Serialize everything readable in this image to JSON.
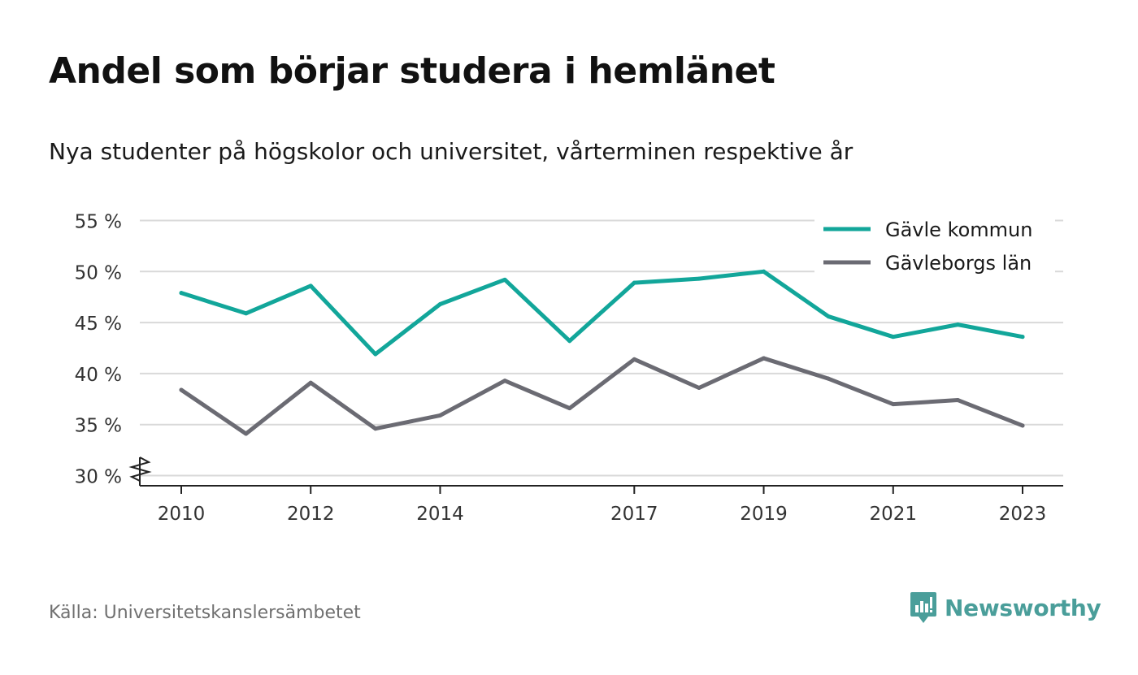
{
  "header": {
    "title": "Andel som börjar studera i hemlänet",
    "subtitle": "Nya studenter på högskolor och universitet, vårterminen respektive år"
  },
  "footer": {
    "source": "Källa: Universitetskanslersämbetet",
    "brand": "Newsworthy"
  },
  "colors": {
    "series_1": "#12a69a",
    "series_2": "#6b6b73",
    "grid": "#d9d9d9",
    "axis": "#222222",
    "brand": "#4a9e9a"
  },
  "chart_data": {
    "type": "line",
    "title": "Andel som börjar studera i hemlänet",
    "subtitle": "Nya studenter på högskolor och universitet, vårterminen respektive år",
    "x": [
      2010,
      2011,
      2012,
      2013,
      2014,
      2015,
      2016,
      2017,
      2018,
      2019,
      2020,
      2021,
      2022,
      2023
    ],
    "x_tick_labels": [
      "2010",
      "2012",
      "2014",
      "2017",
      "2019",
      "2021",
      "2023"
    ],
    "y_tick_labels": [
      "30 %",
      "35 %",
      "40 %",
      "45 %",
      "50 %",
      "55 %"
    ],
    "y_ticks": [
      30,
      35,
      40,
      45,
      50,
      55
    ],
    "ylim": [
      30,
      55
    ],
    "y_axis_break": true,
    "grid": true,
    "legend_position": "top-right",
    "series": [
      {
        "name": "Gävle kommun",
        "color": "#12a69a",
        "values": [
          47.9,
          45.9,
          48.6,
          41.9,
          46.8,
          49.2,
          43.2,
          48.9,
          49.3,
          50.0,
          45.6,
          43.6,
          44.8,
          43.6
        ]
      },
      {
        "name": "Gävleborgs län",
        "color": "#6b6b73",
        "values": [
          38.4,
          34.1,
          39.1,
          34.6,
          35.9,
          39.3,
          36.6,
          41.4,
          38.6,
          41.5,
          39.5,
          37.0,
          37.4,
          34.9
        ]
      }
    ]
  }
}
